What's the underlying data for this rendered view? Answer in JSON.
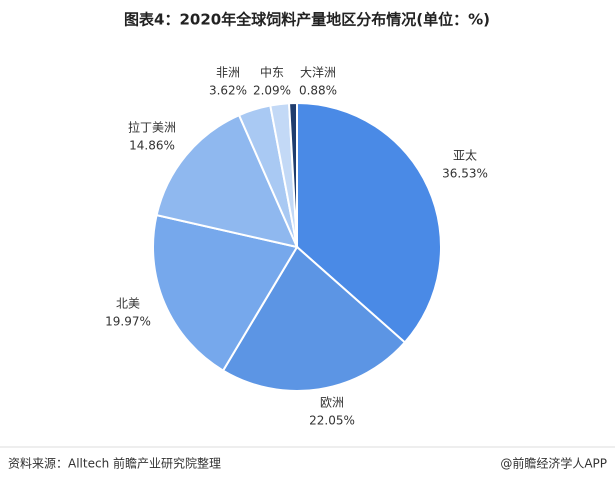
{
  "chart_data": {
    "type": "pie",
    "title": "图表4：2020年全球饲料产量地区分布情况(单位：%)",
    "source": "资料来源：Alltech 前瞻产业研究院整理",
    "footer": "@前瞻经济学人APP",
    "categories": [
      "亚太",
      "欧洲",
      "北美",
      "拉丁美洲",
      "非洲",
      "中东",
      "大洋洲"
    ],
    "values": [
      36.53,
      22.05,
      19.97,
      14.86,
      3.62,
      2.09,
      0.88
    ],
    "value_labels": [
      "36.53%",
      "22.05%",
      "19.97%",
      "14.86%",
      "3.62%",
      "2.09%",
      "0.88%"
    ],
    "colors": [
      "#4a8ae6",
      "#5c95e4",
      "#76a8ec",
      "#8fb8ef",
      "#a9c9f3",
      "#c3d9f6",
      "#1f3d6e"
    ]
  }
}
